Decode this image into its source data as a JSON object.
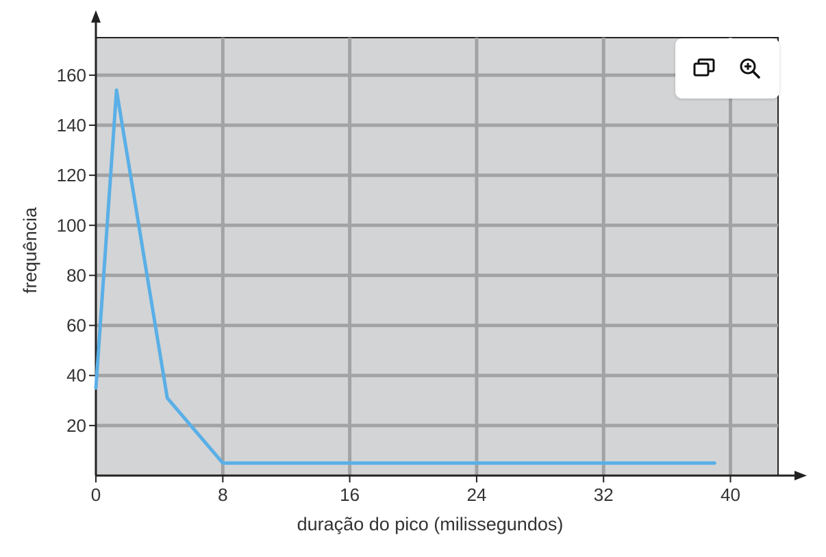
{
  "chart_data": {
    "type": "line",
    "xlabel": "duração do pico (milissegundos)",
    "ylabel": "frequência",
    "xlim": [
      0,
      43
    ],
    "ylim": [
      0,
      175
    ],
    "x_ticks": [
      0,
      8,
      16,
      24,
      32,
      40
    ],
    "y_ticks": [
      20,
      40,
      60,
      80,
      100,
      120,
      140,
      160
    ],
    "grid": true,
    "colors": {
      "plot_bg": "#d3d4d6",
      "grid": "#a2a3a5",
      "line": "#5aafe6",
      "axis": "#222222"
    },
    "series": [
      {
        "x": [
          0,
          1.3,
          4.5,
          8,
          39
        ],
        "y": [
          35,
          154,
          31,
          5,
          5
        ]
      }
    ]
  },
  "toolbar": {
    "buttons": [
      {
        "icon": "copy-windows-icon"
      },
      {
        "icon": "zoom-in-icon"
      }
    ]
  }
}
